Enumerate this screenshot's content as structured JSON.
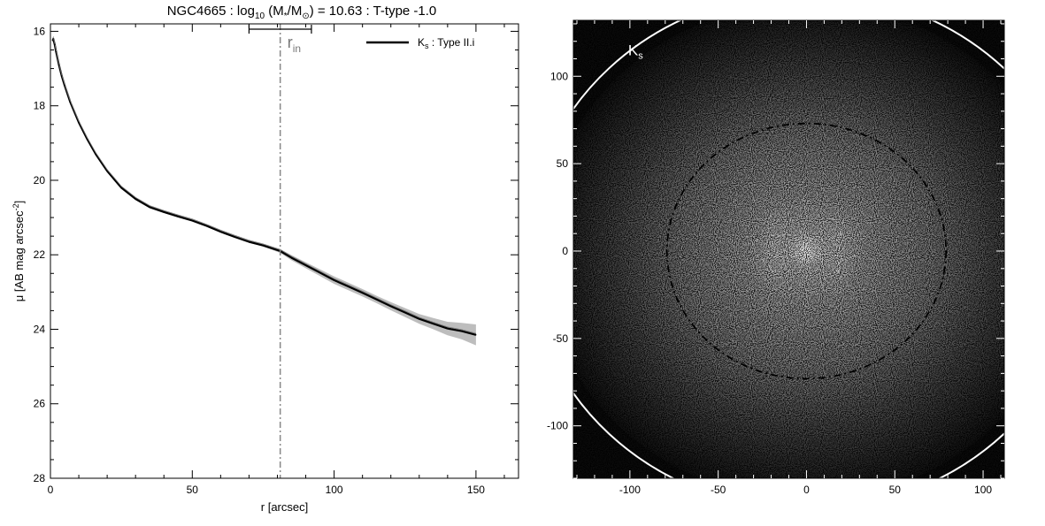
{
  "chart_data": [
    {
      "type": "line",
      "title_parts": {
        "prefix": "NGC4665 : log",
        "sub1": "10",
        "mid1": " (M",
        "sub2": "*",
        "mid2": "/M",
        "sub3": "⊙",
        "suffix": ") = 10.63 : T-type -1.0"
      },
      "xlabel": "r [arcsec]",
      "ylabel_parts": {
        "main": "μ [AB mag arcsec",
        "sup": "-2",
        "end": "]"
      },
      "xlim": [
        0,
        165
      ],
      "ylim": [
        28,
        15.8
      ],
      "y_inverted": true,
      "x_ticks": [
        0,
        50,
        100,
        150
      ],
      "y_ticks": [
        16,
        18,
        20,
        22,
        24,
        26,
        28
      ],
      "x_minor_step": 10,
      "y_minor_step": 0.5,
      "grid": false,
      "legend": {
        "placement": "top-right",
        "label_main": "K",
        "label_sub": "s",
        "label_rest": " : Type II.i"
      },
      "annotation": {
        "r_in_label_main": "r",
        "r_in_label_sub": "in",
        "r_in_value": 81,
        "r_in_error_range": [
          70,
          92
        ]
      },
      "series": [
        {
          "name": "Ks : Type II.i",
          "x": [
            0.8,
            1,
            1.5,
            2,
            3,
            4,
            5,
            7,
            10,
            13,
            16,
            20,
            25,
            30,
            35,
            40,
            45,
            50,
            55,
            60,
            65,
            70,
            75,
            81,
            85,
            90,
            95,
            100,
            105,
            110,
            115,
            120,
            125,
            130,
            135,
            140,
            145,
            150
          ],
          "y": [
            16.25,
            16.2,
            16.35,
            16.55,
            16.9,
            17.2,
            17.45,
            17.9,
            18.45,
            18.9,
            19.3,
            19.75,
            20.2,
            20.5,
            20.72,
            20.85,
            20.97,
            21.08,
            21.22,
            21.38,
            21.52,
            21.65,
            21.75,
            21.9,
            22.08,
            22.28,
            22.48,
            22.68,
            22.85,
            23.02,
            23.2,
            23.38,
            23.55,
            23.72,
            23.85,
            23.98,
            24.05,
            24.15
          ],
          "band_half_width": [
            0.03,
            0.03,
            0.03,
            0.03,
            0.03,
            0.03,
            0.03,
            0.03,
            0.03,
            0.03,
            0.03,
            0.03,
            0.03,
            0.03,
            0.03,
            0.03,
            0.03,
            0.03,
            0.03,
            0.03,
            0.03,
            0.03,
            0.03,
            0.05,
            0.07,
            0.08,
            0.09,
            0.1,
            0.1,
            0.1,
            0.1,
            0.11,
            0.12,
            0.13,
            0.15,
            0.18,
            0.22,
            0.28
          ]
        }
      ]
    },
    {
      "type": "heatmap",
      "panel_label_main": "K",
      "panel_label_sub": "s",
      "xlim": [
        -132,
        112
      ],
      "ylim": [
        -130,
        132
      ],
      "x_ticks": [
        -100,
        -50,
        0,
        50,
        100
      ],
      "y_ticks": [
        -100,
        -50,
        0,
        50,
        100
      ],
      "x_minor_step": 10,
      "y_minor_step": 10,
      "ellipses": [
        {
          "name": "inner-ellipse",
          "style": "dash-dot",
          "color": "#000000",
          "cx": 0,
          "cy": 0,
          "rx": 79,
          "ry": 73
        },
        {
          "name": "outer-ellipse",
          "style": "solid",
          "color": "#ffffff",
          "cx": 0,
          "cy": 0,
          "rx": 158,
          "ry": 148
        }
      ]
    }
  ]
}
